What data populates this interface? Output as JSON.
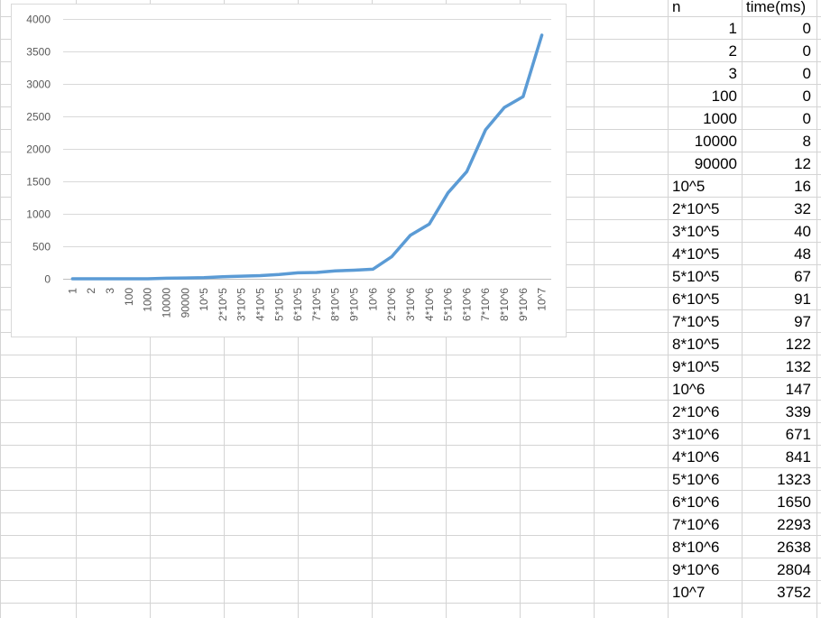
{
  "sheet": {
    "header_n": "n",
    "header_time": "time(ms)",
    "rows": [
      {
        "n": "1",
        "time": "0"
      },
      {
        "n": "2",
        "time": "0"
      },
      {
        "n": "3",
        "time": "0"
      },
      {
        "n": "100",
        "time": "0"
      },
      {
        "n": "1000",
        "time": "0"
      },
      {
        "n": "10000",
        "time": "8"
      },
      {
        "n": "90000",
        "time": "12"
      },
      {
        "n": "10^5",
        "time": "16"
      },
      {
        "n": "2*10^5",
        "time": "32"
      },
      {
        "n": "3*10^5",
        "time": "40"
      },
      {
        "n": "4*10^5",
        "time": "48"
      },
      {
        "n": "5*10^5",
        "time": "67"
      },
      {
        "n": "6*10^5",
        "time": "91"
      },
      {
        "n": "7*10^5",
        "time": "97"
      },
      {
        "n": "8*10^5",
        "time": "122"
      },
      {
        "n": "9*10^5",
        "time": "132"
      },
      {
        "n": "10^6",
        "time": "147"
      },
      {
        "n": "2*10^6",
        "time": "339"
      },
      {
        "n": "3*10^6",
        "time": "671"
      },
      {
        "n": "4*10^6",
        "time": "841"
      },
      {
        "n": "5*10^6",
        "time": "1323"
      },
      {
        "n": "6*10^6",
        "time": "1650"
      },
      {
        "n": "7*10^6",
        "time": "2293"
      },
      {
        "n": "8*10^6",
        "time": "2638"
      },
      {
        "n": "9*10^6",
        "time": "2804"
      },
      {
        "n": "10^7",
        "time": "3752"
      }
    ]
  },
  "chart_data": {
    "type": "line",
    "categories": [
      "1",
      "2",
      "3",
      "100",
      "1000",
      "10000",
      "90000",
      "10^5",
      "2*10^5",
      "3*10^5",
      "4*10^5",
      "5*10^5",
      "6*10^5",
      "7*10^5",
      "8*10^5",
      "9*10^5",
      "10^6",
      "2*10^6",
      "3*10^6",
      "4*10^6",
      "5*10^6",
      "6*10^6",
      "7*10^6",
      "8*10^6",
      "9*10^6",
      "10^7"
    ],
    "series": [
      {
        "values": [
          0,
          0,
          0,
          0,
          0,
          8,
          12,
          16,
          32,
          40,
          48,
          67,
          91,
          97,
          122,
          132,
          147,
          339,
          671,
          841,
          1323,
          1650,
          2293,
          2638,
          2804,
          3752
        ]
      }
    ],
    "y_ticks": [
      0,
      500,
      1000,
      1500,
      2000,
      2500,
      3000,
      3500,
      4000
    ],
    "ylim": [
      0,
      4000
    ],
    "grid": "horizontal",
    "legend": "none",
    "line_color": "#5b9bd5"
  }
}
